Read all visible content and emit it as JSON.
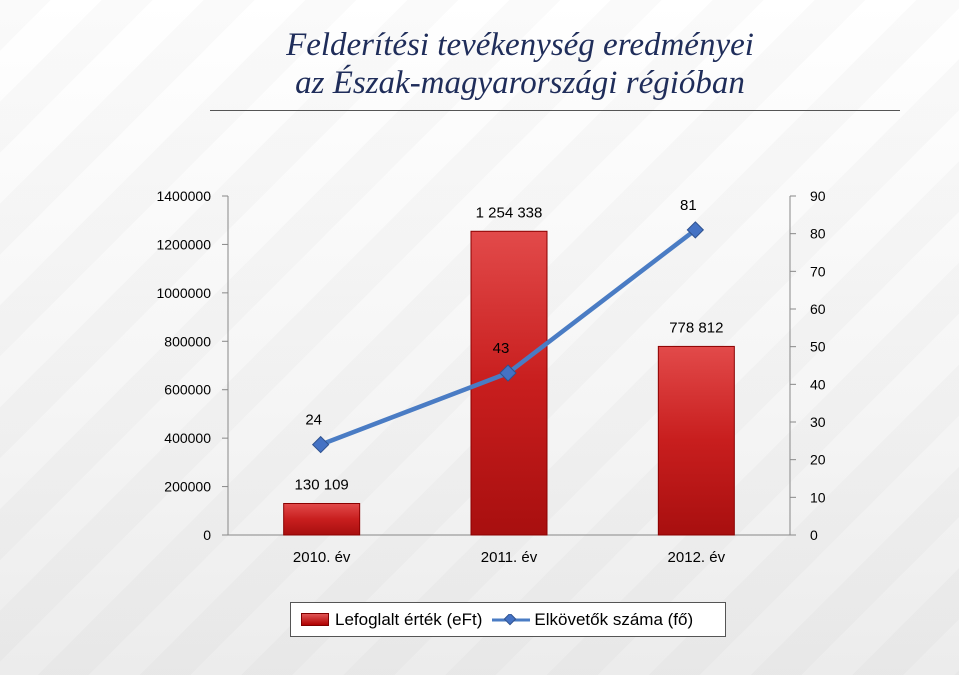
{
  "title": {
    "line1": "Felderítési tevékenység eredményei",
    "line2": "az Észak-magyarországi régióban"
  },
  "colors": {
    "bar": "#c81e1e",
    "bar_dark": "#8a0000",
    "line": "#4a7cc4",
    "marker": "#4472c4",
    "title": "#1f2d5a"
  },
  "chart_data": {
    "type": "bar",
    "categories": [
      "2010. év",
      "2011. év",
      "2012. év"
    ],
    "series": [
      {
        "name": "Lefoglalt érték (eFt)",
        "type": "bar",
        "axis": "left",
        "values": [
          130109,
          1254338,
          778812
        ],
        "data_labels": [
          "130 109",
          "1 254 338",
          "778 812"
        ]
      },
      {
        "name": "Elkövetők száma (fő)",
        "type": "line",
        "axis": "right",
        "values": [
          24,
          43,
          81
        ],
        "data_labels": [
          "24",
          "43",
          "81"
        ]
      }
    ],
    "y_left": {
      "ylim": [
        0,
        1400000
      ],
      "ticks": [
        "0",
        "200000",
        "400000",
        "600000",
        "800000",
        "1000000",
        "1200000",
        "1400000"
      ]
    },
    "y_right": {
      "ylim": [
        0,
        90
      ],
      "ticks": [
        "0",
        "10",
        "20",
        "30",
        "40",
        "50",
        "60",
        "70",
        "80",
        "90"
      ]
    },
    "grid": false,
    "legend_position": "bottom"
  }
}
